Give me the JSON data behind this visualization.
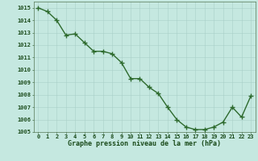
{
  "x": [
    0,
    1,
    2,
    3,
    4,
    5,
    6,
    7,
    8,
    9,
    10,
    11,
    12,
    13,
    14,
    15,
    16,
    17,
    18,
    19,
    20,
    21,
    22,
    23
  ],
  "y": [
    1015.0,
    1014.7,
    1014.0,
    1012.8,
    1012.9,
    1012.2,
    1011.5,
    1011.5,
    1011.3,
    1010.6,
    1009.3,
    1009.3,
    1008.6,
    1008.1,
    1007.0,
    1006.0,
    1005.4,
    1005.2,
    1005.2,
    1005.4,
    1005.8,
    1007.0,
    1006.2,
    1007.9
  ],
  "line_color": "#2d6a2d",
  "marker": "+",
  "bg_color": "#c5e8e0",
  "grid_color": "#aacfc8",
  "xlabel": "Graphe pression niveau de la mer (hPa)",
  "xlabel_color": "#1a4a1a",
  "tick_color": "#1a4a1a",
  "ylim": [
    1005,
    1015.5
  ],
  "xlim": [
    -0.5,
    23.5
  ],
  "yticks": [
    1005,
    1006,
    1007,
    1008,
    1009,
    1010,
    1011,
    1012,
    1013,
    1014,
    1015
  ],
  "xticks": [
    0,
    1,
    2,
    3,
    4,
    5,
    6,
    7,
    8,
    9,
    10,
    11,
    12,
    13,
    14,
    15,
    16,
    17,
    18,
    19,
    20,
    21,
    22,
    23
  ],
  "line_width": 1.0,
  "marker_size": 4
}
